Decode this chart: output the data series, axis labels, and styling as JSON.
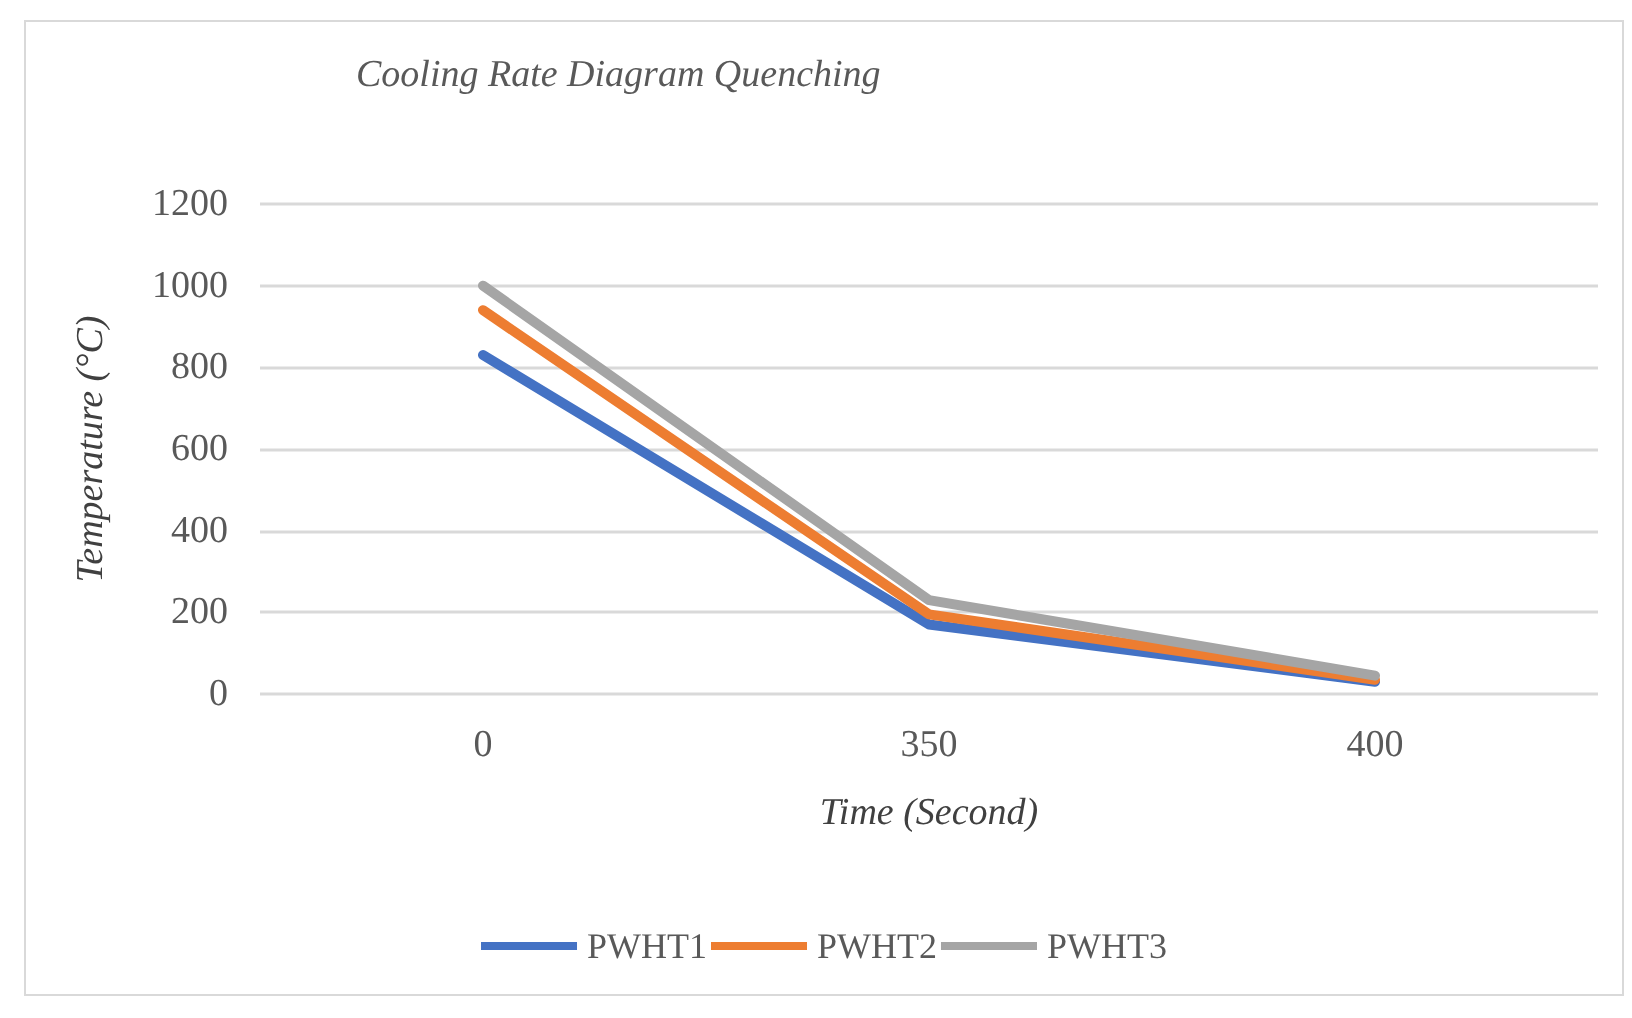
{
  "chart_data": {
    "type": "line",
    "title": "Cooling Rate Diagram Quenching",
    "xlabel": "Time (Second)",
    "ylabel": "Temperature (°C)",
    "categories": [
      "0",
      "350",
      "400"
    ],
    "series": [
      {
        "name": "PWHT1",
        "color": "#4472c4",
        "values": [
          830,
          170,
          30
        ]
      },
      {
        "name": "PWHT2",
        "color": "#ed7d31",
        "values": [
          940,
          195,
          35
        ]
      },
      {
        "name": "PWHT3",
        "color": "#a5a5a5",
        "values": [
          1000,
          230,
          45
        ]
      }
    ],
    "ylim": [
      0,
      1200
    ],
    "yticks": [
      0,
      200,
      400,
      600,
      800,
      1000,
      1200
    ],
    "grid": "y",
    "legend": "bottom",
    "marker": "none",
    "line_style": "solid"
  }
}
